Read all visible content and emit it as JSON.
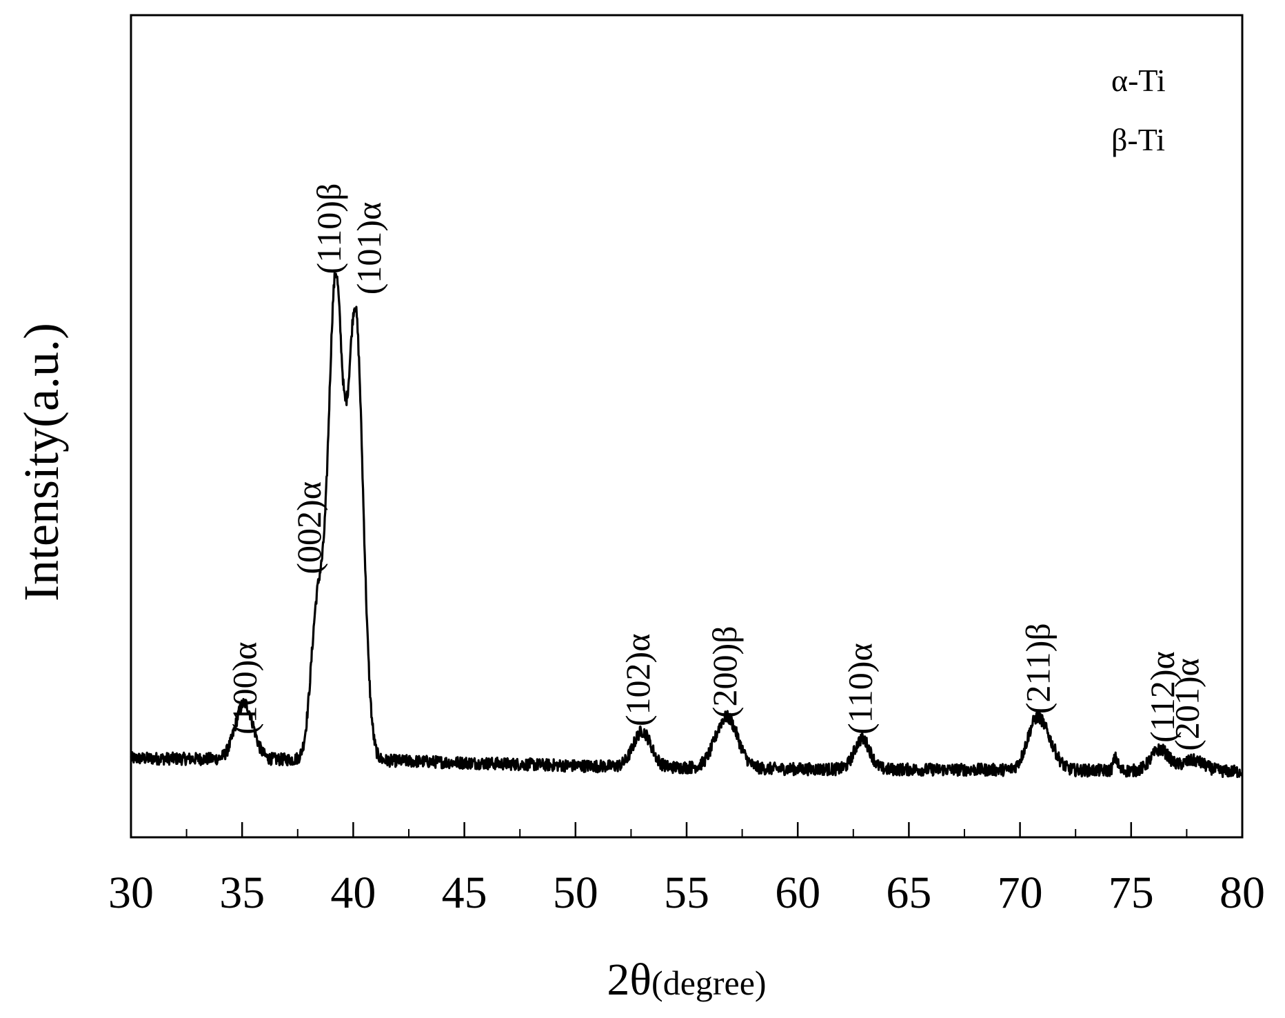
{
  "chart_data": {
    "type": "line",
    "title": "",
    "xlabel_main": "2θ",
    "xlabel_unit": "(degree)",
    "ylabel": "Intensity(a.u.)",
    "xlim": [
      30,
      80
    ],
    "ylim": [
      0,
      100
    ],
    "xticks": [
      "30",
      "35",
      "40",
      "45",
      "50",
      "55",
      "60",
      "65",
      "70",
      "75",
      "80"
    ],
    "x_minor_step": 2.5,
    "legend": {
      "placement": "top-right",
      "entries": [
        "α-Ti",
        "β-Ti"
      ]
    },
    "baseline": [
      [
        30,
        9.6
      ],
      [
        40.6,
        9.4
      ],
      [
        50,
        8.7
      ],
      [
        60,
        8.3
      ],
      [
        70,
        8.2
      ],
      [
        80,
        8.0
      ]
    ],
    "peaks": [
      {
        "x": 35.1,
        "height": 6.8,
        "width": 0.4
      },
      {
        "x": 38.4,
        "height": 18.5,
        "width": 0.3
      },
      {
        "x": 39.2,
        "height": 57.0,
        "width": 0.32
      },
      {
        "x": 40.1,
        "height": 54.0,
        "width": 0.34
      },
      {
        "x": 53.0,
        "height": 4.3,
        "width": 0.4
      },
      {
        "x": 56.8,
        "height": 6.2,
        "width": 0.5
      },
      {
        "x": 62.9,
        "height": 3.7,
        "width": 0.35
      },
      {
        "x": 70.7,
        "height": 5.5,
        "width": 0.4
      },
      {
        "x": 71.3,
        "height": 2.4,
        "width": 0.4
      },
      {
        "x": 74.3,
        "height": 1.5,
        "width": 0.1
      },
      {
        "x": 76.3,
        "height": 2.6,
        "width": 0.4
      },
      {
        "x": 77.8,
        "height": 1.3,
        "width": 0.5
      }
    ],
    "peak_labels": [
      {
        "text": "(100)α",
        "x": 35.1,
        "y": 12.5
      },
      {
        "text": "(002)α",
        "x": 38.0,
        "y": 32.0
      },
      {
        "text": "(110)β",
        "x": 38.9,
        "y": 68.5
      },
      {
        "text": "(101)α",
        "x": 40.7,
        "y": 66.0
      },
      {
        "text": "(102)α",
        "x": 52.8,
        "y": 13.5
      },
      {
        "text": "(200)β",
        "x": 56.7,
        "y": 14.5
      },
      {
        "text": "(110)α",
        "x": 62.8,
        "y": 12.5
      },
      {
        "text": "(211)β",
        "x": 70.8,
        "y": 15.0
      },
      {
        "text": "(112)α",
        "x": 76.4,
        "y": 11.5
      },
      {
        "text": "(201)α",
        "x": 77.5,
        "y": 10.5
      }
    ]
  }
}
